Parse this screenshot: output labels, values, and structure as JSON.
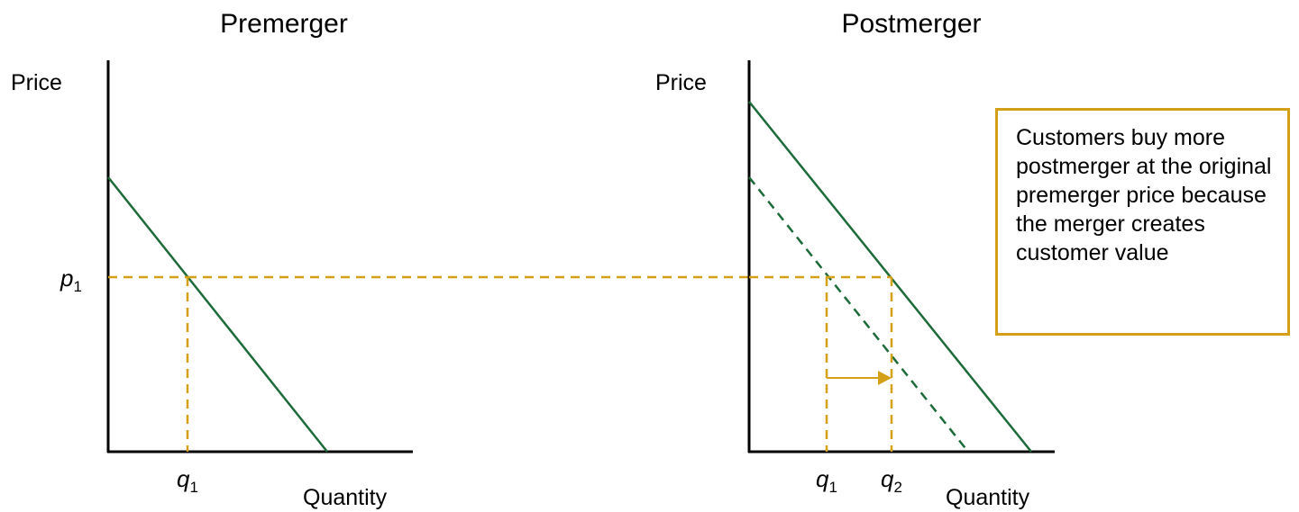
{
  "titles": {
    "left": "Premerger",
    "right": "Postmerger"
  },
  "axes": {
    "left": {
      "y_label": "Price",
      "x_label": "Quantity"
    },
    "right": {
      "y_label": "Price",
      "x_label": "Quantity"
    }
  },
  "symbols": {
    "price_sym": "p",
    "price_sub": "1",
    "q_sym": "q",
    "q1_sub": "1",
    "q2_sub": "2"
  },
  "note": "Customers buy more postmerger at the original premerger price because the merger creates customer value",
  "colors": {
    "demand_line": "#1E6B3A",
    "guide_line": "#D4A017",
    "axis": "#000000"
  }
}
